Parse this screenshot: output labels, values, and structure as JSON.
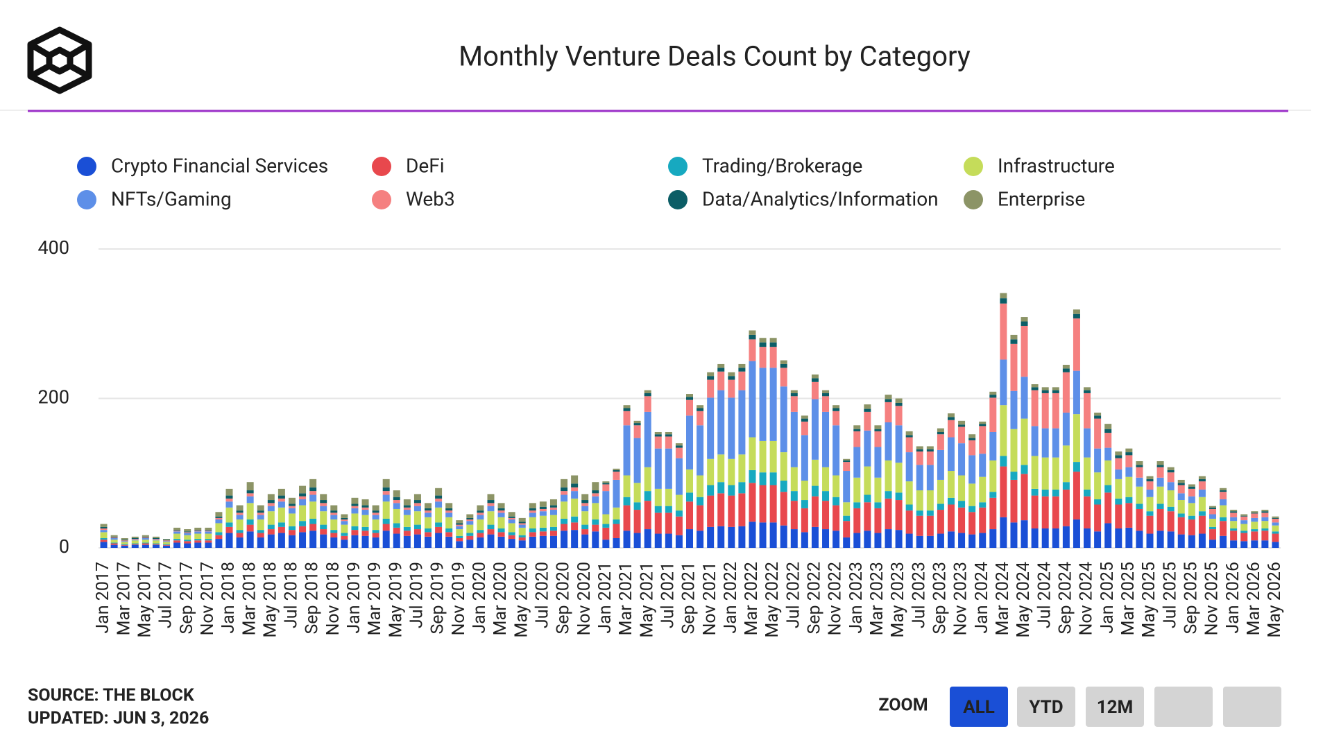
{
  "chart_data": {
    "type": "stacked_bar",
    "title": "Monthly Venture Deals Count by Category",
    "categories": [
      "Jan 2017",
      null,
      "Mar 2017",
      null,
      "May 2017",
      null,
      "Jul 2017",
      null,
      "Sep 2017",
      null,
      "Nov 2017",
      null,
      "Jan 2018",
      null,
      "Mar 2018",
      null,
      "May 2018",
      null,
      "Jul 2018",
      null,
      "Sep 2018",
      null,
      "Nov 2018",
      null,
      "Jan 2019",
      null,
      "Mar 2019",
      null,
      "May 2019",
      null,
      "Jul 2019",
      null,
      "Sep 2019",
      null,
      "Nov 2019",
      null,
      "Jan 2020",
      null,
      "Mar 2020",
      null,
      "May 2020",
      null,
      "Jul 2020",
      null,
      "Sep 2020",
      null,
      "Nov 2020",
      null,
      "Jan 2021",
      null,
      "Mar 2021",
      null,
      "May 2021",
      null,
      "Jul 2021",
      null,
      "Sep 2021",
      null,
      "Nov 2021",
      null,
      "Jan 2022",
      null,
      "Mar 2022",
      null,
      "May 2022",
      null,
      "Jul 2022",
      null,
      "Sep 2022",
      null,
      "Nov 2022",
      null,
      "Jan 2023",
      null,
      "Mar 2023",
      null,
      "May 2023",
      null,
      "Jul 2023",
      null,
      "Sep 2023",
      null,
      "Nov 2023",
      null,
      "Jan 2024",
      null,
      "Mar 2024",
      null,
      "May 2024",
      null,
      "Jul 2024",
      null,
      "Sep 2024",
      null,
      "Nov 2024",
      null,
      "Jan 2025",
      null,
      "Mar 2025",
      null,
      "May 2025",
      null,
      "Jul 2025",
      null,
      "Sep 2025",
      null,
      "Nov 2025",
      null,
      "Jan 2026",
      null,
      "Mar 2026",
      null,
      "May 2026"
    ],
    "series": [
      {
        "name": "Crypto Financial Services",
        "color": "#1a4fd6",
        "values": [
          8,
          4,
          3,
          4,
          4,
          4,
          3,
          7,
          6,
          7,
          7,
          12,
          20,
          14,
          22,
          14,
          18,
          20,
          17,
          21,
          23,
          18,
          14,
          11,
          17,
          16,
          14,
          23,
          19,
          16,
          18,
          15,
          20,
          15,
          9,
          11,
          14,
          18,
          15,
          12,
          10,
          15,
          16,
          16,
          23,
          24,
          18,
          22,
          11,
          13,
          23,
          20,
          25,
          19,
          19,
          17,
          25,
          23,
          28,
          29,
          28,
          29,
          35,
          34,
          34,
          30,
          25,
          21,
          28,
          25,
          23,
          14,
          20,
          23,
          20,
          25,
          24,
          19,
          16,
          16,
          19,
          22,
          20,
          18,
          20,
          25,
          41,
          34,
          37,
          26,
          26,
          26,
          29,
          38,
          26,
          22,
          33,
          26,
          27,
          23,
          19,
          23,
          22,
          18,
          17,
          19,
          11,
          16,
          10,
          9,
          10,
          10,
          8
        ]
      },
      {
        "name": "DeFi",
        "color": "#e8484d",
        "values": [
          3,
          2,
          1,
          1,
          2,
          1,
          1,
          3,
          3,
          3,
          3,
          5,
          8,
          6,
          9,
          6,
          7,
          8,
          7,
          8,
          9,
          7,
          6,
          5,
          7,
          7,
          6,
          9,
          8,
          7,
          7,
          6,
          8,
          6,
          4,
          5,
          6,
          7,
          6,
          5,
          4,
          6,
          6,
          7,
          9,
          10,
          7,
          9,
          16,
          19,
          34,
          31,
          38,
          28,
          28,
          25,
          37,
          34,
          42,
          44,
          42,
          44,
          52,
          50,
          50,
          45,
          38,
          32,
          41,
          38,
          34,
          22,
          33,
          38,
          33,
          41,
          40,
          31,
          27,
          27,
          32,
          36,
          34,
          30,
          34,
          42,
          68,
          57,
          62,
          44,
          43,
          43,
          49,
          64,
          43,
          36,
          41,
          32,
          33,
          29,
          24,
          29,
          27,
          23,
          21,
          24,
          14,
          20,
          13,
          11,
          12,
          13,
          11
        ]
      },
      {
        "name": "Trading/Brokerage",
        "color": "#17a9c0",
        "values": [
          2,
          1,
          1,
          1,
          1,
          1,
          1,
          2,
          2,
          2,
          2,
          4,
          6,
          4,
          7,
          4,
          6,
          6,
          5,
          7,
          7,
          6,
          4,
          4,
          5,
          5,
          4,
          7,
          6,
          5,
          6,
          5,
          6,
          5,
          3,
          4,
          4,
          6,
          5,
          4,
          3,
          5,
          5,
          5,
          7,
          8,
          6,
          7,
          5,
          6,
          11,
          10,
          13,
          9,
          9,
          8,
          12,
          11,
          14,
          15,
          14,
          15,
          17,
          17,
          17,
          15,
          13,
          11,
          14,
          13,
          11,
          7,
          8,
          10,
          8,
          10,
          10,
          8,
          7,
          7,
          8,
          9,
          9,
          8,
          7,
          8,
          14,
          11,
          12,
          9,
          9,
          9,
          10,
          13,
          9,
          7,
          10,
          8,
          8,
          7,
          6,
          7,
          6,
          5,
          5,
          6,
          3,
          5,
          3,
          3,
          3,
          3,
          3
        ]
      },
      {
        "name": "Infrastructure",
        "color": "#c5dc5a",
        "values": [
          8,
          4,
          3,
          4,
          4,
          4,
          3,
          7,
          6,
          7,
          7,
          12,
          20,
          14,
          22,
          14,
          18,
          20,
          17,
          21,
          23,
          18,
          14,
          11,
          17,
          16,
          14,
          23,
          19,
          16,
          18,
          15,
          20,
          15,
          9,
          11,
          14,
          18,
          15,
          12,
          10,
          15,
          16,
          16,
          23,
          24,
          18,
          22,
          13,
          16,
          29,
          26,
          32,
          23,
          23,
          21,
          31,
          29,
          35,
          37,
          35,
          37,
          44,
          42,
          42,
          38,
          32,
          26,
          35,
          32,
          29,
          18,
          33,
          38,
          33,
          41,
          40,
          31,
          27,
          27,
          32,
          36,
          34,
          30,
          34,
          42,
          68,
          57,
          62,
          44,
          43,
          43,
          49,
          64,
          43,
          36,
          33,
          26,
          27,
          23,
          19,
          23,
          22,
          18,
          17,
          19,
          11,
          16,
          10,
          9,
          10,
          10,
          8
        ]
      },
      {
        "name": "NFTs/Gaming",
        "color": "#5d8fe8",
        "values": [
          3,
          2,
          1,
          1,
          2,
          1,
          1,
          3,
          3,
          3,
          3,
          5,
          8,
          6,
          9,
          6,
          7,
          8,
          7,
          8,
          9,
          7,
          6,
          5,
          7,
          7,
          6,
          9,
          8,
          7,
          7,
          6,
          8,
          6,
          4,
          5,
          6,
          7,
          6,
          5,
          4,
          6,
          6,
          7,
          9,
          10,
          7,
          9,
          31,
          37,
          67,
          60,
          74,
          54,
          54,
          49,
          72,
          67,
          82,
          86,
          82,
          86,
          102,
          98,
          98,
          88,
          74,
          61,
          81,
          74,
          67,
          42,
          41,
          48,
          41,
          51,
          50,
          39,
          34,
          34,
          40,
          45,
          43,
          38,
          31,
          38,
          61,
          51,
          56,
          40,
          39,
          39,
          44,
          58,
          39,
          32,
          17,
          13,
          13,
          12,
          10,
          12,
          11,
          9,
          9,
          10,
          6,
          8,
          5,
          5,
          5,
          5,
          4
        ]
      },
      {
        "name": "Web3",
        "color": "#f58080",
        "values": [
          2,
          1,
          1,
          1,
          1,
          1,
          1,
          1,
          1,
          1,
          1,
          2,
          4,
          3,
          4,
          3,
          4,
          4,
          3,
          4,
          5,
          4,
          3,
          2,
          3,
          3,
          3,
          5,
          4,
          3,
          4,
          3,
          4,
          3,
          2,
          2,
          3,
          4,
          3,
          2,
          2,
          3,
          3,
          3,
          5,
          5,
          4,
          4,
          9,
          11,
          19,
          17,
          21,
          16,
          16,
          14,
          21,
          19,
          24,
          25,
          24,
          25,
          29,
          28,
          28,
          25,
          21,
          18,
          23,
          21,
          19,
          12,
          21,
          25,
          21,
          27,
          26,
          20,
          18,
          18,
          21,
          23,
          22,
          20,
          37,
          46,
          75,
          63,
          68,
          48,
          47,
          47,
          54,
          70,
          47,
          40,
          20,
          15,
          16,
          14,
          11,
          14,
          13,
          11,
          10,
          11,
          7,
          10,
          6,
          5,
          6,
          6,
          5
        ]
      },
      {
        "name": "Data/Analytics/Information",
        "color": "#0b5d66",
        "values": [
          2,
          1,
          1,
          1,
          1,
          1,
          1,
          1,
          1,
          1,
          1,
          2,
          4,
          3,
          4,
          3,
          4,
          4,
          3,
          4,
          5,
          4,
          3,
          2,
          3,
          3,
          3,
          5,
          4,
          3,
          4,
          3,
          4,
          3,
          2,
          2,
          3,
          4,
          3,
          2,
          2,
          3,
          3,
          3,
          5,
          5,
          4,
          4,
          2,
          2,
          4,
          3,
          4,
          3,
          3,
          3,
          4,
          4,
          5,
          5,
          5,
          5,
          6,
          6,
          6,
          5,
          4,
          4,
          5,
          4,
          4,
          2,
          3,
          4,
          3,
          4,
          4,
          3,
          3,
          3,
          3,
          4,
          3,
          3,
          3,
          4,
          7,
          6,
          6,
          4,
          4,
          4,
          5,
          6,
          4,
          4,
          5,
          4,
          4,
          3,
          3,
          3,
          3,
          3,
          3,
          3,
          2,
          2,
          2,
          1,
          1,
          2,
          1
        ]
      },
      {
        "name": "Enterprise",
        "color": "#8c9466",
        "values": [
          4,
          2,
          2,
          2,
          2,
          2,
          1,
          3,
          3,
          3,
          3,
          6,
          9,
          7,
          11,
          7,
          8,
          9,
          8,
          10,
          11,
          8,
          7,
          5,
          8,
          8,
          7,
          11,
          9,
          8,
          8,
          7,
          10,
          7,
          4,
          5,
          7,
          8,
          7,
          6,
          5,
          7,
          7,
          8,
          11,
          11,
          8,
          11,
          2,
          2,
          4,
          3,
          4,
          3,
          3,
          3,
          4,
          4,
          5,
          5,
          5,
          5,
          6,
          6,
          6,
          5,
          4,
          4,
          5,
          4,
          4,
          2,
          5,
          6,
          5,
          6,
          6,
          5,
          4,
          4,
          5,
          5,
          5,
          5,
          3,
          4,
          7,
          6,
          6,
          4,
          4,
          4,
          5,
          6,
          4,
          4,
          7,
          5,
          5,
          5,
          4,
          5,
          4,
          4,
          3,
          4,
          2,
          3,
          2,
          2,
          2,
          2,
          2
        ]
      }
    ],
    "ylim": [
      0,
      400
    ],
    "yticks": [
      0,
      200,
      400
    ],
    "grid": true
  },
  "source": "SOURCE: THE BLOCK",
  "updated": "UPDATED: JUN 3, 2026",
  "zoom": {
    "label": "ZOOM",
    "buttons": [
      "ALL",
      "YTD",
      "12M"
    ]
  }
}
